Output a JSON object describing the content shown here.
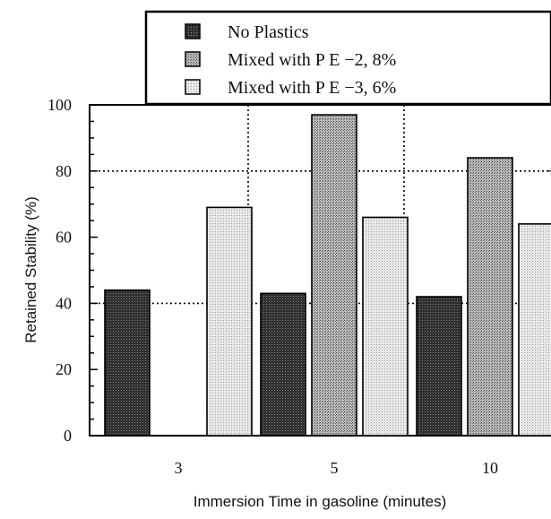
{
  "chart_data": {
    "type": "bar",
    "categories": [
      "3",
      "5",
      "10"
    ],
    "series": [
      {
        "name": "No Plastics",
        "values": [
          44,
          43,
          42
        ],
        "fill": "dark"
      },
      {
        "name": "Mixed with P E −2, 8%",
        "values": [
          null,
          97,
          84
        ],
        "fill": "medium"
      },
      {
        "name": "Mixed with P E −3, 6%",
        "values": [
          69,
          66,
          64
        ],
        "fill": "light"
      }
    ],
    "title": "",
    "xlabel": "Immersion Time in gasoline (minutes)",
    "ylabel": "Retained Stability (%)",
    "ylim": [
      0,
      100
    ],
    "yticks": [
      "0",
      "20",
      "40",
      "60",
      "80",
      "100"
    ],
    "grid": "dotted horizontal at 40, 80 and vertical between categories",
    "legend_position": "top"
  },
  "colors": {
    "dark": "#3a3a3a",
    "medium": "#9d9d9d",
    "light": "#d6d6d6",
    "axis": "#000000"
  }
}
